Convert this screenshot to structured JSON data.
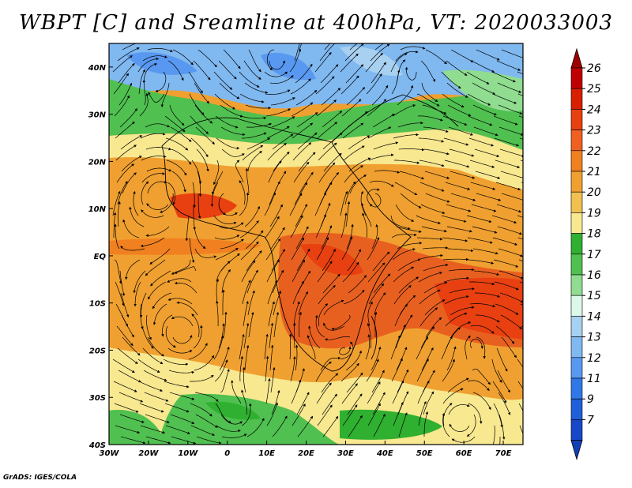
{
  "map": {
    "title": "WBPT [C] and Sreamline at 400hPa, VT: 2020033003",
    "footer": "GrADS: IGES/COLA",
    "lon_labels": [
      "30W",
      "20W",
      "10W",
      "0",
      "10E",
      "20E",
      "30E",
      "40E",
      "50E",
      "60E",
      "70E"
    ],
    "lat_labels": [
      "40N",
      "30N",
      "20N",
      "10N",
      "EQ",
      "10S",
      "20S",
      "30S",
      "40S"
    ],
    "lon_range": [
      -30,
      75
    ],
    "lat_range": [
      -40,
      45
    ],
    "variable": "Wet bulb potential temperature",
    "units": "C",
    "level": "400hPa",
    "valid_time": "2020033003"
  },
  "colorbar": {
    "labels": [
      "26",
      "25",
      "24",
      "23",
      "22",
      "21",
      "20",
      "19",
      "18",
      "17",
      "16",
      "15",
      "14",
      "13",
      "12",
      "11",
      "9",
      "7"
    ],
    "colors": [
      "#c00000",
      "#d82000",
      "#e84010",
      "#f06020",
      "#f08020",
      "#f0a030",
      "#f0c050",
      "#f8e890",
      "#30b030",
      "#50c050",
      "#90dc90",
      "#dcf8e8",
      "#a8d0f0",
      "#80b8f0",
      "#5898f0",
      "#3078e8",
      "#1f5fd8",
      "#1848c8"
    ],
    "top_arrow_color": "#a00000",
    "bottom_arrow_color": "#1040b8"
  }
}
